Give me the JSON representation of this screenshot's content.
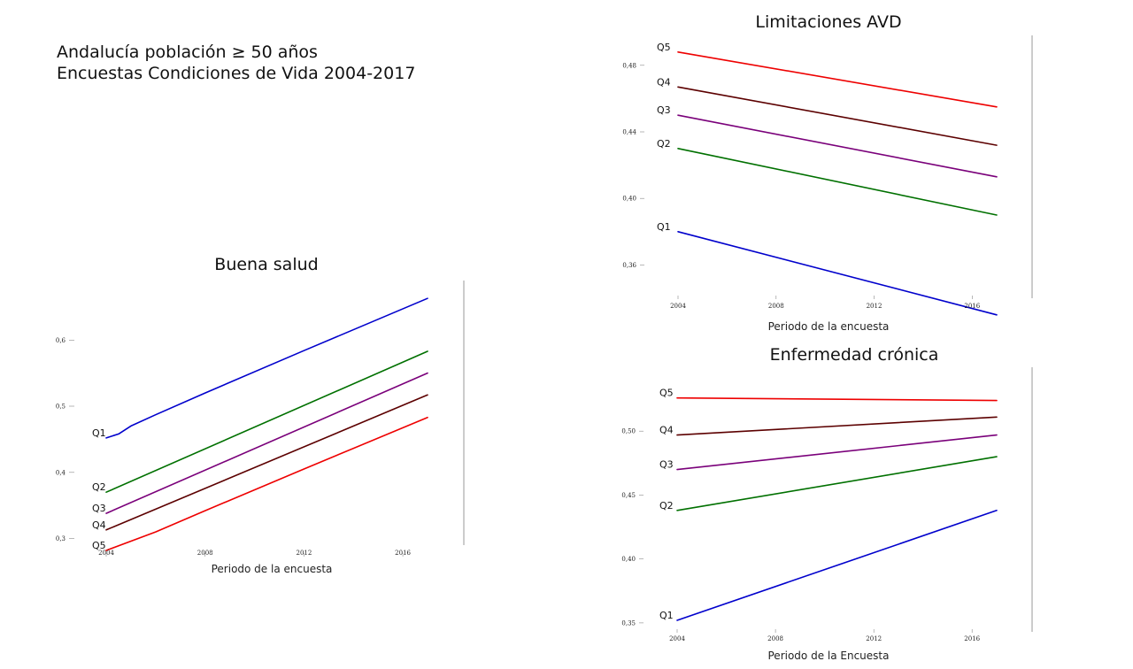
{
  "slide": {
    "title_line1": "Andalucía población ≥ 50 años",
    "title_line2": "Encuestas Condiciones de Vida 2004-2017"
  },
  "chart_data": [
    {
      "id": "buena",
      "type": "line",
      "title": "Buena salud",
      "xlabel": "Periodo de la encuesta",
      "ylabel": "",
      "xlim": [
        2004,
        2017
      ],
      "ylim": [
        0.29,
        0.69
      ],
      "x_ticks": [
        2004,
        2008,
        2012,
        2016
      ],
      "y_ticks": [
        {
          "value": 0.3,
          "label": "0,3"
        },
        {
          "value": 0.4,
          "label": "0,4"
        },
        {
          "value": 0.5,
          "label": "0,5"
        },
        {
          "value": 0.6,
          "label": "0,6"
        }
      ],
      "series": [
        {
          "name": "Q1",
          "color": "#0000cc",
          "x": [
            2004,
            2004.5,
            2005,
            2006,
            2008,
            2012,
            2017
          ],
          "y": [
            0.452,
            0.458,
            0.47,
            0.487,
            0.52,
            0.584,
            0.663
          ]
        },
        {
          "name": "Q2",
          "color": "#007000",
          "x": [
            2004,
            2017
          ],
          "y": [
            0.37,
            0.583
          ]
        },
        {
          "name": "Q3",
          "color": "#7a007a",
          "x": [
            2004,
            2017
          ],
          "y": [
            0.338,
            0.55
          ]
        },
        {
          "name": "Q4",
          "color": "#5c0000",
          "x": [
            2004,
            2017
          ],
          "y": [
            0.313,
            0.517
          ]
        },
        {
          "name": "Q5",
          "color": "#ee0000",
          "x": [
            2004,
            2006,
            2008,
            2012,
            2017
          ],
          "y": [
            0.282,
            0.31,
            0.342,
            0.405,
            0.483
          ]
        }
      ]
    },
    {
      "id": "avd",
      "type": "line",
      "title": "Limitaciones AVD",
      "xlabel": "Periodo de la encuesta",
      "ylabel": "",
      "xlim": [
        2004,
        2017
      ],
      "ylim": [
        0.34,
        0.498
      ],
      "x_ticks": [
        2004,
        2008,
        2012,
        2016
      ],
      "y_ticks": [
        {
          "value": 0.36,
          "label": "0,36"
        },
        {
          "value": 0.4,
          "label": "0,40"
        },
        {
          "value": 0.44,
          "label": "0,44"
        },
        {
          "value": 0.48,
          "label": "0,48"
        }
      ],
      "series": [
        {
          "name": "Q5",
          "color": "#ee0000",
          "x": [
            2004,
            2017
          ],
          "y": [
            0.488,
            0.455
          ]
        },
        {
          "name": "Q4",
          "color": "#5c0000",
          "x": [
            2004,
            2017
          ],
          "y": [
            0.467,
            0.432
          ]
        },
        {
          "name": "Q3",
          "color": "#7a007a",
          "x": [
            2004,
            2017
          ],
          "y": [
            0.45,
            0.413
          ]
        },
        {
          "name": "Q2",
          "color": "#007000",
          "x": [
            2004,
            2017
          ],
          "y": [
            0.43,
            0.39
          ]
        },
        {
          "name": "Q1",
          "color": "#0000cc",
          "x": [
            2004,
            2017
          ],
          "y": [
            0.38,
            0.33
          ]
        }
      ]
    },
    {
      "id": "cronica",
      "type": "line",
      "title": "Enfermedad crónica",
      "xlabel": "Periodo de la Encuesta",
      "ylabel": "",
      "xlim": [
        2004,
        2017
      ],
      "ylim": [
        0.343,
        0.55
      ],
      "x_ticks": [
        2004,
        2008,
        2012,
        2016
      ],
      "y_ticks": [
        {
          "value": 0.35,
          "label": "0,35"
        },
        {
          "value": 0.4,
          "label": "0,40"
        },
        {
          "value": 0.45,
          "label": "0,45"
        },
        {
          "value": 0.5,
          "label": "0,50"
        }
      ],
      "series": [
        {
          "name": "Q5",
          "color": "#ee0000",
          "x": [
            2004,
            2017
          ],
          "y": [
            0.526,
            0.524
          ]
        },
        {
          "name": "Q4",
          "color": "#5c0000",
          "x": [
            2004,
            2017
          ],
          "y": [
            0.497,
            0.511
          ]
        },
        {
          "name": "Q3",
          "color": "#7a007a",
          "x": [
            2004,
            2017
          ],
          "y": [
            0.47,
            0.497
          ]
        },
        {
          "name": "Q2",
          "color": "#007000",
          "x": [
            2004,
            2017
          ],
          "y": [
            0.438,
            0.48
          ]
        },
        {
          "name": "Q1",
          "color": "#0000cc",
          "x": [
            2004,
            2017
          ],
          "y": [
            0.352,
            0.438
          ]
        }
      ]
    }
  ]
}
